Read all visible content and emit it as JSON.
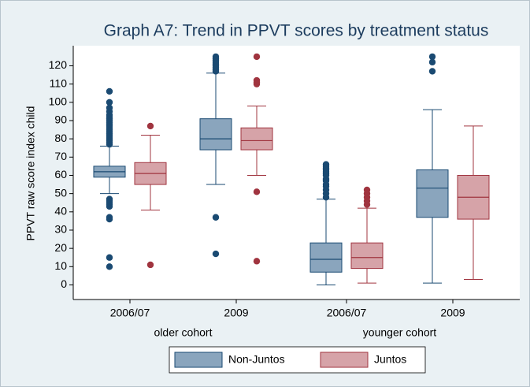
{
  "chart_data": {
    "type": "box",
    "title": "Graph A7: Trend in PPVT scores by treatment status",
    "y_label": "PPVT raw score index child",
    "groups": [
      {
        "name": "older cohort",
        "categories": [
          "2006/07",
          "2009"
        ]
      },
      {
        "name": "younger cohort",
        "categories": [
          "2006/07",
          "2009"
        ]
      }
    ],
    "ylim": [
      -8,
      131
    ],
    "yticks": [
      0,
      10,
      20,
      30,
      40,
      50,
      60,
      70,
      80,
      90,
      100,
      110,
      120
    ],
    "grid": false,
    "legend": "bottom",
    "series": [
      {
        "name": "Non-Juntos",
        "color": "#8aa5bd",
        "edge": "#1a4a72",
        "values": [
          {
            "min": 50,
            "q1": 59,
            "median": 62,
            "q3": 65,
            "max": 76,
            "outliers": [
              10,
              15,
              36,
              37,
              43,
              44,
              45,
              46,
              47,
              77,
              78,
              79,
              80,
              81,
              82,
              83,
              84,
              85,
              86,
              87,
              88,
              89,
              90,
              91,
              92,
              93,
              95,
              97,
              100,
              106
            ]
          },
          {
            "min": 55,
            "q1": 74,
            "median": 80,
            "q3": 91,
            "max": 116,
            "outliers": [
              17,
              37,
              117,
              118,
              119,
              120,
              121,
              122,
              123,
              124,
              125
            ]
          },
          {
            "min": 0,
            "q1": 7,
            "median": 14,
            "q3": 23,
            "max": 47,
            "outliers": [
              48,
              50,
              52,
              54,
              55,
              57,
              58,
              60,
              61,
              62,
              63,
              64,
              65,
              66
            ]
          },
          {
            "min": 1,
            "q1": 37,
            "median": 53,
            "q3": 63,
            "max": 96,
            "outliers": [
              117,
              122,
              125
            ]
          }
        ]
      },
      {
        "name": "Juntos",
        "color": "#d6a3a8",
        "edge": "#a0343f",
        "values": [
          {
            "min": 41,
            "q1": 55,
            "median": 61,
            "q3": 67,
            "max": 82,
            "outliers": [
              11,
              87
            ]
          },
          {
            "min": 60,
            "q1": 74,
            "median": 79,
            "q3": 86,
            "max": 98,
            "outliers": [
              13,
              51,
              110,
              111,
              112,
              125
            ]
          },
          {
            "min": 1,
            "q1": 9,
            "median": 15,
            "q3": 23,
            "max": 42,
            "outliers": [
              44,
              46,
              48,
              50,
              52
            ]
          },
          {
            "min": 3,
            "q1": 36,
            "median": 48,
            "q3": 60,
            "max": 87,
            "outliers": []
          }
        ]
      }
    ]
  }
}
